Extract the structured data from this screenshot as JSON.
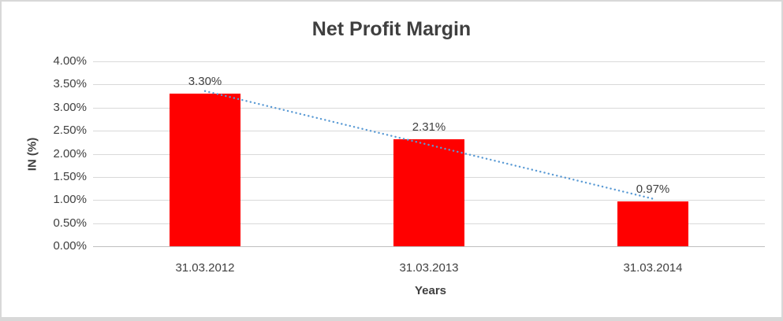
{
  "chart_data": {
    "type": "bar",
    "title": "Net Profit Margin",
    "xlabel": "Years",
    "ylabel": "IN (%)",
    "categories": [
      "31.03.2012",
      "31.03.2013",
      "31.03.2014"
    ],
    "values": [
      3.3,
      2.31,
      0.97
    ],
    "data_labels": [
      "3.30%",
      "2.31%",
      "0.97%"
    ],
    "ylim": [
      0,
      4
    ],
    "ytick_step": 0.5,
    "ytick_labels": [
      "4.00%",
      "3.50%",
      "3.00%",
      "2.50%",
      "2.00%",
      "1.50%",
      "1.00%",
      "0.50%",
      "0.00%"
    ],
    "grid": true,
    "legend": "none",
    "bar_color": "#ff0000",
    "gridline_color": "#d9d9d9",
    "text_color": "#404040",
    "trendline": {
      "type": "linear",
      "style": "dotted",
      "color": "#5b9bd5"
    }
  }
}
